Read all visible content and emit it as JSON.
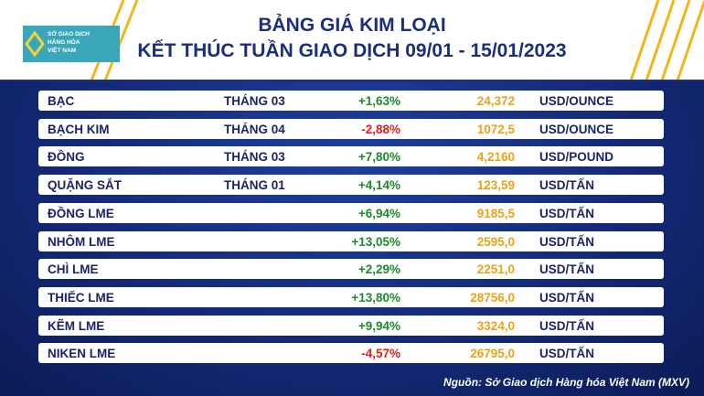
{
  "header": {
    "logo_text": [
      "SỞ GIAO DỊCH",
      "HÀNG HÓA",
      "VIỆT NAM"
    ],
    "title": "BẢNG GIÁ KIM LOẠI",
    "subtitle": "KẾT THÚC TUẦN GIAO DỊCH 09/01 - 15/01/2023"
  },
  "table": {
    "rows": [
      [
        "BẠC",
        "THÁNG 03",
        "+1,63%",
        "24,372",
        "USD/OUNCE"
      ],
      [
        "BẠCH KIM",
        "THÁNG 04",
        "-2,88%",
        "1072,5",
        "USD/OUNCE"
      ],
      [
        "ĐỒNG",
        "THÁNG 03",
        "+7,80%",
        "4,2160",
        "USD/POUND"
      ],
      [
        "QUẶNG SẮT",
        "THÁNG 01",
        "+4,14%",
        "123,59",
        "USD/TẤN"
      ],
      [
        "ĐỒNG LME",
        null,
        "+6,94%",
        "9185,5",
        "USD/TẤN"
      ],
      [
        "NHÔM LME",
        null,
        "+13,05%",
        "2595,0",
        "USD/TẤN"
      ],
      [
        "CHÌ LME",
        null,
        "+2,29%",
        "2251,0",
        "USD/TẤN"
      ],
      [
        "THIẾC LME",
        null,
        "+13,80%",
        "28756,0",
        "USD/TẤN"
      ],
      [
        "KẼM LME",
        null,
        "+9,94%",
        "3324,0",
        "USD/TẤN"
      ],
      [
        "NIKEN LME",
        null,
        "-4,57%",
        "26795,0",
        "USD/TẤN"
      ]
    ]
  },
  "footer": {
    "source": "Nguồn: Sở Giao dịch Hàng hóa Việt Nam (MXV)"
  }
}
